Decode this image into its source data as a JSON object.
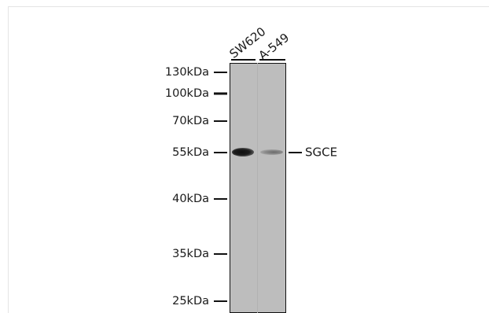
{
  "lanes": [
    {
      "label": "SW620"
    },
    {
      "label": "A-549"
    }
  ],
  "markers": [
    {
      "label": "130kDa"
    },
    {
      "label": "100kDa"
    },
    {
      "label": "70kDa"
    },
    {
      "label": "55kDa"
    },
    {
      "label": "40kDa"
    },
    {
      "label": "35kDa"
    },
    {
      "label": "25kDa"
    }
  ],
  "target": {
    "label": "SGCE"
  },
  "band_intensity": {
    "SW620": 1.0,
    "A-549": 0.4
  },
  "colors": {
    "membrane": "#bdbdbd",
    "band": "#1b1b1b",
    "text": "#1a1a1a"
  }
}
